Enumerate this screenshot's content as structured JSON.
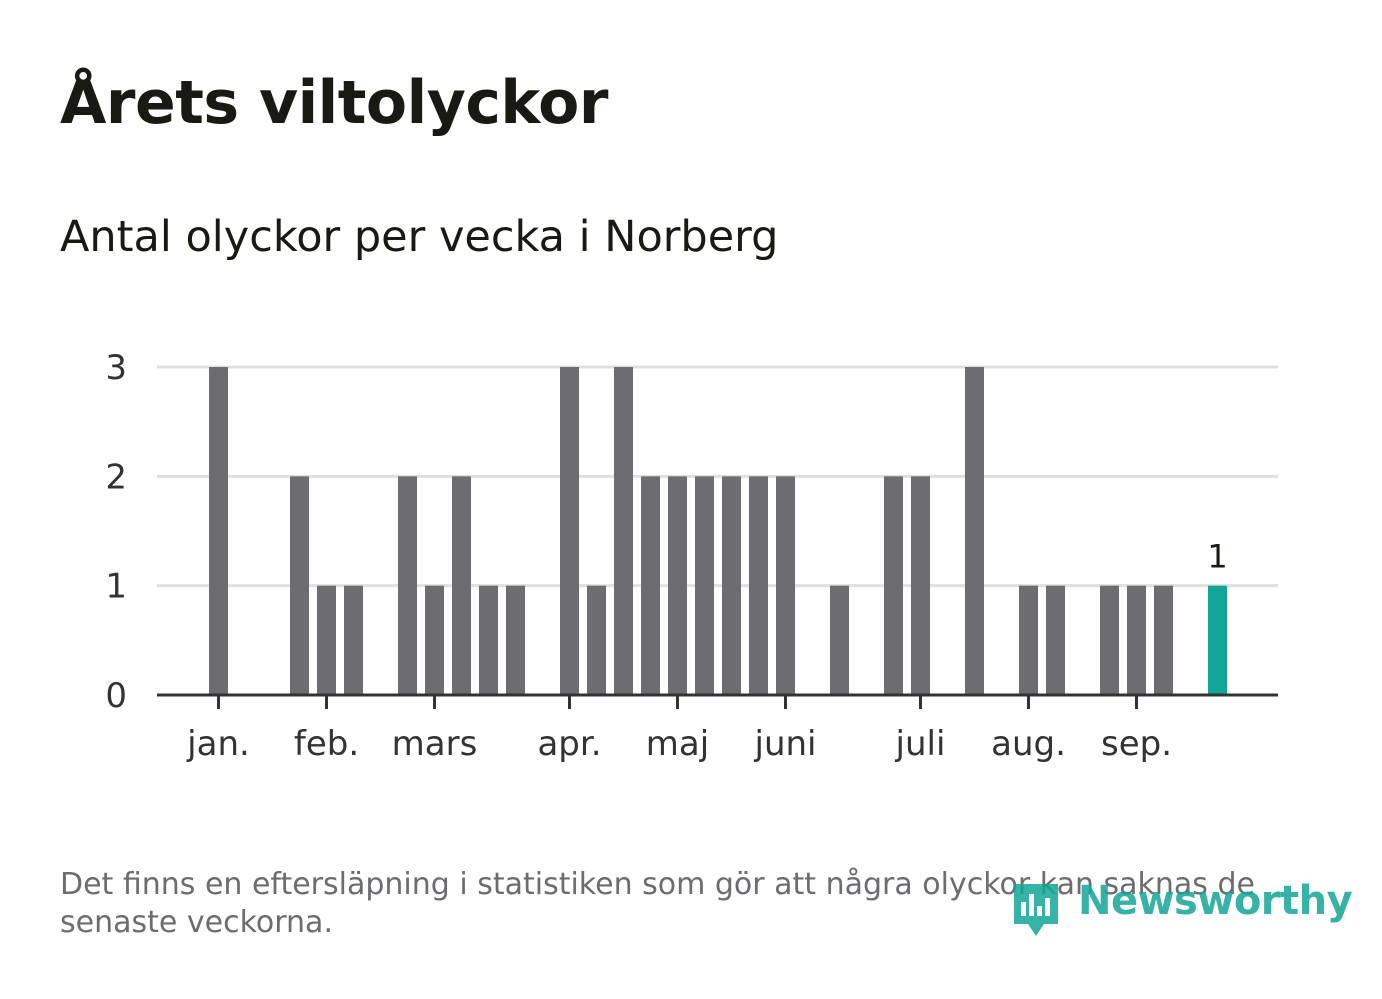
{
  "header": {
    "title": "Årets viltolyckor",
    "subtitle": "Antal olyckor per vecka i Norberg"
  },
  "footnote": "Det finns en eftersläpning i statistiken som gör att några olyckor kan saknas de senaste veckorna.",
  "brand": {
    "name": "Newsworthy"
  },
  "colors": {
    "bar": "#6d6c70",
    "highlight": "#13a597",
    "grid": "#e0e0e0",
    "axis": "#333333",
    "text": "#1a1a14",
    "muted": "#6d6c70"
  },
  "chart_data": {
    "type": "bar",
    "title": "Årets viltolyckor",
    "subtitle": "Antal olyckor per vecka i Norberg",
    "xlabel": "",
    "ylabel": "",
    "ylim": [
      0,
      3
    ],
    "yticks": [
      "0",
      "1",
      "2",
      "3"
    ],
    "grid": true,
    "legend": "none",
    "week_count": 38,
    "weeks": [
      1,
      2,
      3,
      4,
      5,
      6,
      7,
      8,
      9,
      10,
      11,
      12,
      13,
      14,
      15,
      16,
      17,
      18,
      19,
      20,
      21,
      22,
      23,
      24,
      25,
      26,
      27,
      28,
      29,
      30,
      31,
      32,
      33,
      34,
      35,
      36,
      37,
      38
    ],
    "values": [
      3,
      0,
      0,
      2,
      1,
      1,
      0,
      2,
      1,
      2,
      1,
      1,
      0,
      3,
      1,
      3,
      2,
      2,
      2,
      2,
      2,
      2,
      0,
      1,
      0,
      2,
      2,
      0,
      3,
      0,
      1,
      1,
      0,
      1,
      1,
      1,
      0,
      1
    ],
    "highlight_index": 37,
    "highlight_label": "1",
    "month_labels": [
      {
        "label": "jan.",
        "week": 1
      },
      {
        "label": "feb.",
        "week": 5
      },
      {
        "label": "mars",
        "week": 9
      },
      {
        "label": "apr.",
        "week": 14
      },
      {
        "label": "maj",
        "week": 18
      },
      {
        "label": "juni",
        "week": 22
      },
      {
        "label": "juli",
        "week": 27
      },
      {
        "label": "aug.",
        "week": 31
      },
      {
        "label": "sep.",
        "week": 35
      }
    ]
  }
}
